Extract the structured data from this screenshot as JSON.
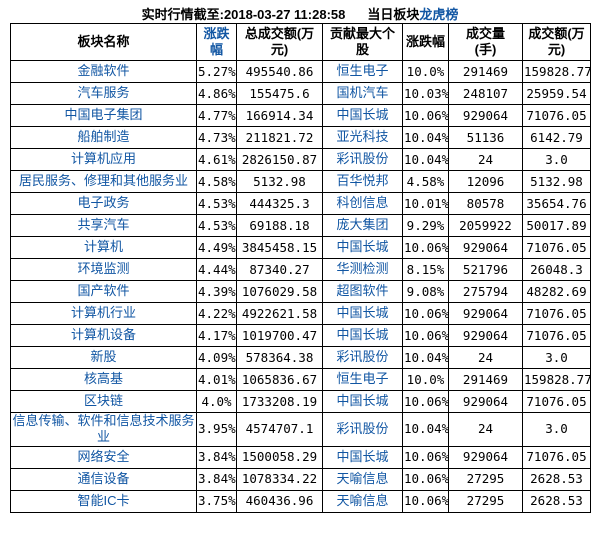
{
  "title": {
    "label": "实时行情截至:",
    "timestamp": "2018-03-27 11:28:58",
    "board_prefix": "当日板块",
    "link_text": "龙虎榜"
  },
  "colors": {
    "link_blue": "#1156a3",
    "text_black": "#000000",
    "border": "#000000",
    "background": "#ffffff"
  },
  "table": {
    "headers": [
      {
        "label": "板块名称",
        "blue": false
      },
      {
        "label": "涨跌\n幅",
        "blue": true
      },
      {
        "label": "总成交额(万\n元)",
        "blue": false
      },
      {
        "label": "贡献最大个\n股",
        "blue": false
      },
      {
        "label": "涨跌幅",
        "blue": false
      },
      {
        "label": "成交量\n(手)",
        "blue": false
      },
      {
        "label": "成交额(万\n元)",
        "blue": false
      }
    ],
    "rows": [
      [
        "金融软件",
        "5.27%",
        "495540.86",
        "恒生电子",
        "10.0%",
        "291469",
        "159828.77"
      ],
      [
        "汽车服务",
        "4.86%",
        "155475.6",
        "国机汽车",
        "10.03%",
        "248107",
        "25959.54"
      ],
      [
        "中国电子集团",
        "4.77%",
        "166914.34",
        "中国长城",
        "10.06%",
        "929064",
        "71076.05"
      ],
      [
        "船舶制造",
        "4.73%",
        "211821.72",
        "亚光科技",
        "10.04%",
        "51136",
        "6142.79"
      ],
      [
        "计算机应用",
        "4.61%",
        "2826150.87",
        "彩讯股份",
        "10.04%",
        "24",
        "3.0"
      ],
      [
        "居民服务、修理和其他服务业",
        "4.58%",
        "5132.98",
        "百华悦邦",
        "4.58%",
        "12096",
        "5132.98"
      ],
      [
        "电子政务",
        "4.53%",
        "444325.3",
        "科创信息",
        "10.01%",
        "80578",
        "35654.76"
      ],
      [
        "共享汽车",
        "4.53%",
        "69188.18",
        "庞大集团",
        "9.29%",
        "2059922",
        "50017.89"
      ],
      [
        "计算机",
        "4.49%",
        "3845458.15",
        "中国长城",
        "10.06%",
        "929064",
        "71076.05"
      ],
      [
        "环境监测",
        "4.44%",
        "87340.27",
        "华测检测",
        "8.15%",
        "521796",
        "26048.3"
      ],
      [
        "国产软件",
        "4.39%",
        "1076029.58",
        "超图软件",
        "9.08%",
        "275794",
        "48282.69"
      ],
      [
        "计算机行业",
        "4.22%",
        "4922621.58",
        "中国长城",
        "10.06%",
        "929064",
        "71076.05"
      ],
      [
        "计算机设备",
        "4.17%",
        "1019700.47",
        "中国长城",
        "10.06%",
        "929064",
        "71076.05"
      ],
      [
        "新股",
        "4.09%",
        "578364.38",
        "彩讯股份",
        "10.04%",
        "24",
        "3.0"
      ],
      [
        "核高基",
        "4.01%",
        "1065836.67",
        "恒生电子",
        "10.0%",
        "291469",
        "159828.77"
      ],
      [
        "区块链",
        "4.0%",
        "1733208.19",
        "中国长城",
        "10.06%",
        "929064",
        "71076.05"
      ],
      [
        "信息传输、软件和信息技术服务业",
        "3.95%",
        "4574707.1",
        "彩讯股份",
        "10.04%",
        "24",
        "3.0"
      ],
      [
        "网络安全",
        "3.84%",
        "1500058.29",
        "中国长城",
        "10.06%",
        "929064",
        "71076.05"
      ],
      [
        "通信设备",
        "3.84%",
        "1078334.22",
        "天喻信息",
        "10.06%",
        "27295",
        "2628.53"
      ],
      [
        "智能IC卡",
        "3.75%",
        "460436.96",
        "天喻信息",
        "10.06%",
        "27295",
        "2628.53"
      ]
    ]
  }
}
